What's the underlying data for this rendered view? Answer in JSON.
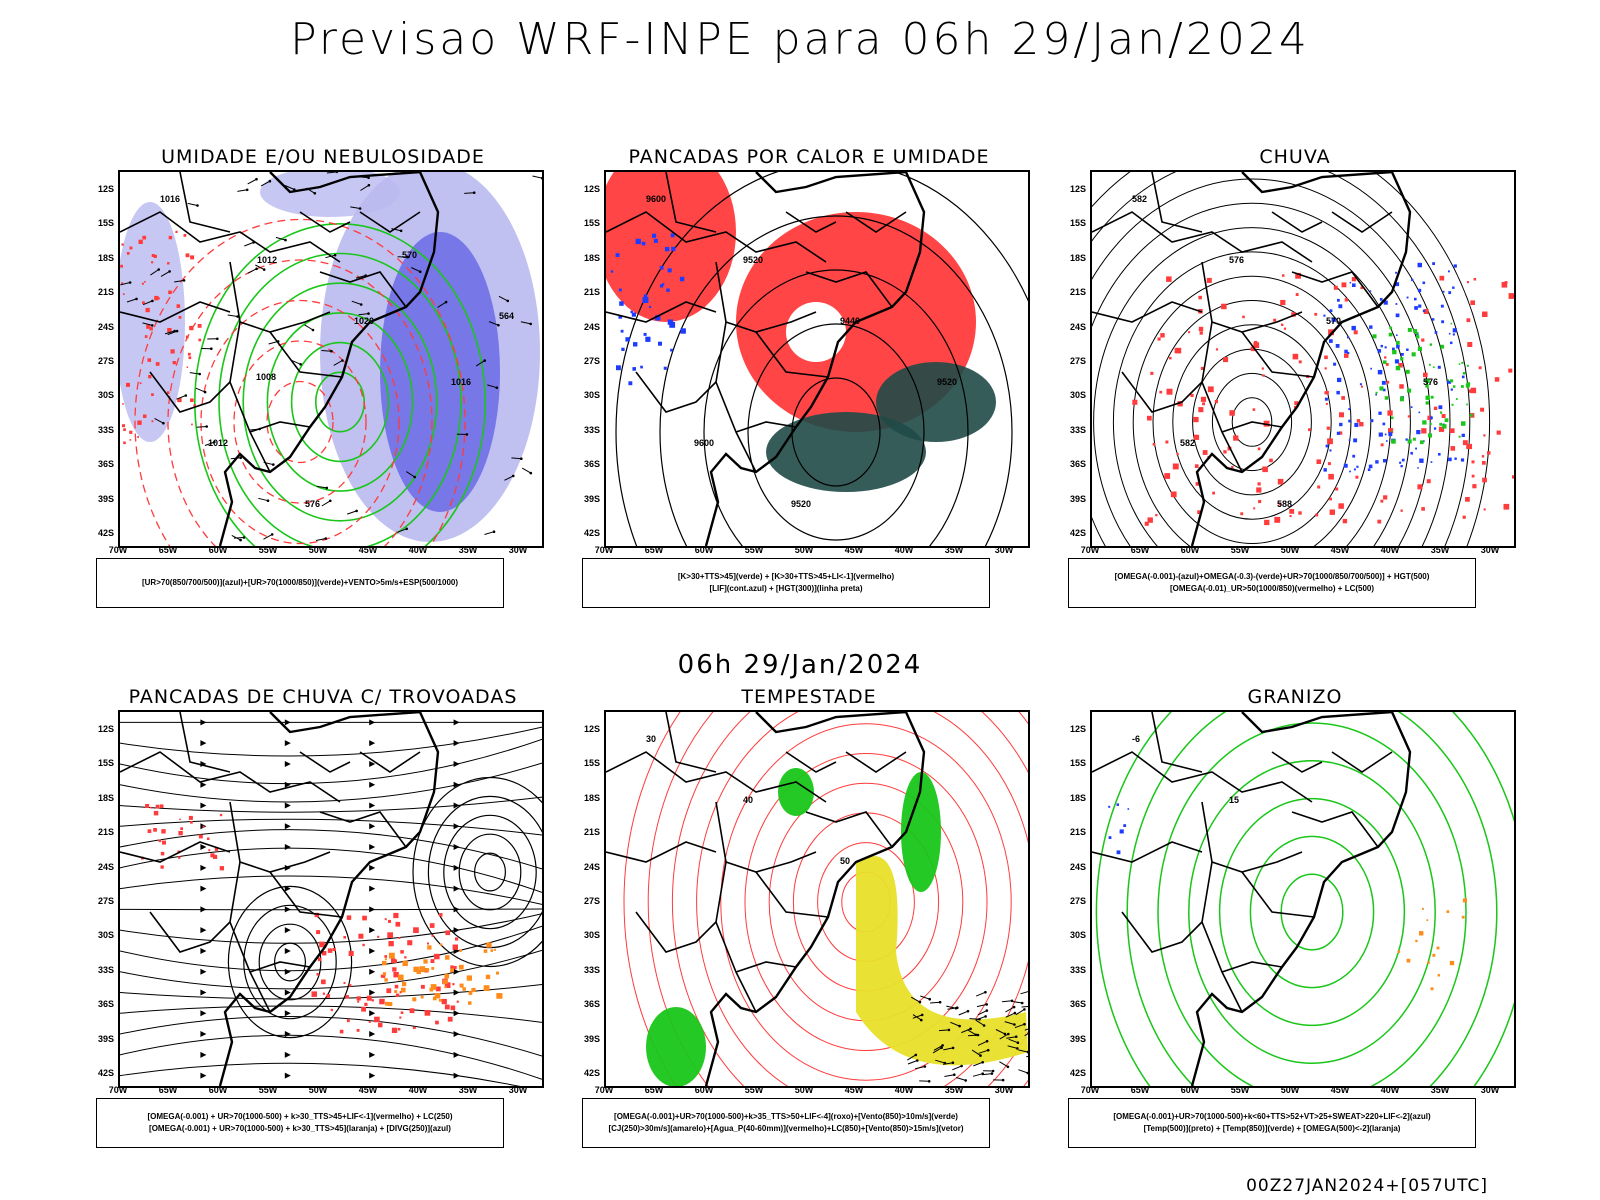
{
  "title": "Previsao WRF-INPE  para 06h 29/Jan/2024",
  "subtitle": "06h 29/Jan/2024",
  "footer": "00Z27JAN2024+[057UTC]",
  "axes": {
    "lat_labels": [
      "12S",
      "15S",
      "18S",
      "21S",
      "24S",
      "27S",
      "30S",
      "33S",
      "36S",
      "39S",
      "42S"
    ],
    "lon_labels": [
      "70W",
      "65W",
      "60W",
      "55W",
      "50W",
      "45W",
      "40W",
      "35W",
      "30W"
    ]
  },
  "colors": {
    "blue": "#1e3cff",
    "green": "#19c619",
    "red": "#ff3b3b",
    "darkteal": "#1f4a47",
    "orange": "#ff8c1a",
    "yellow": "#e8e02a",
    "lightblue": "#b9b9f0",
    "midblue": "#6a6ae6"
  },
  "panels": [
    {
      "title": "UMIDADE E/OU NEBULOSIDADE",
      "legend": [
        "[UR>70(850/700/500)](azul)+[UR>70(1000/850)](verde)+VENTO>5m/s+ESP(500/1000)"
      ],
      "contour_labels": [
        "1016",
        "1012",
        "1020",
        "1016",
        "1012",
        "576",
        "570",
        "564",
        "1008"
      ]
    },
    {
      "title": "PANCADAS POR CALOR E UMIDADE",
      "legend": [
        "[K>30+TTS>45](verde) + [K>30+TTS>45+LI<-1](vermelho)",
        "[LIF](cont.azul) + [HGT(300)](linha preta)"
      ],
      "contour_labels": [
        "9600",
        "9520",
        "9440",
        "9520",
        "9600",
        "9520"
      ]
    },
    {
      "title": "CHUVA",
      "legend": [
        "[OMEGA(-0.001)-(azul)+OMEGA(-0.3)-(verde)+UR>70(1000/850/700/500)] + HGT(500)",
        "[OMEGA(-0.01)_UR>50(1000/850)(vermelho) + LC(500)"
      ],
      "contour_labels": [
        "582",
        "576",
        "570",
        "576",
        "582",
        "588"
      ]
    },
    {
      "title": "PANCADAS DE CHUVA C/ TROVOADAS",
      "legend": [
        "[OMEGA(-0.001) + UR>70(1000-500) + k>30_TTS>45+LIF<-1](vermelho) + LC(250)",
        "[OMEGA(-0.001) + UR>70(1000-500) + k>30_TTS>45](laranja) + [DIVG(250)](azul)"
      ],
      "contour_labels": []
    },
    {
      "title": "TEMPESTADE",
      "legend": [
        "[OMEGA(-0.001)+UR>70(1000-500)+k>35_TTS>50+LIF<-4](roxo)+[Vento(850)>10m/s](verde)",
        "[CJ(250)>30m/s](amarelo)+[Agua_P(40-60mm)](vermelho)+LC(850)+[Vento(850)>15m/s](vetor)"
      ],
      "contour_labels": [
        "30",
        "40",
        "50"
      ]
    },
    {
      "title": "GRANIZO",
      "legend": [
        "[OMEGA(-0.001)+UR>70(1000-500)+k<60+TTS>52+VT>25+SWEAT>220+LIF<-2](azul)",
        "[Temp(500)](preto) + [Temp(850)](verde) + [OMEGA(500)<-2](laranja)"
      ],
      "contour_labels": [
        "-6",
        "15"
      ]
    }
  ]
}
